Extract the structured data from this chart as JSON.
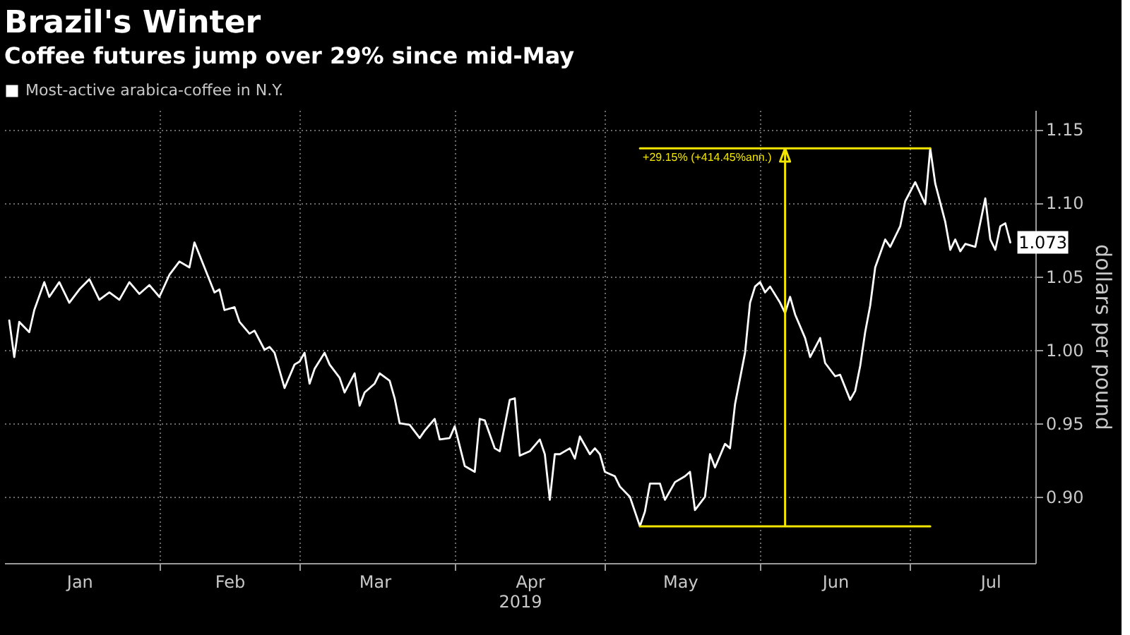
{
  "chart_data": {
    "type": "line",
    "title": "Brazil's Winter",
    "subtitle": "Coffee futures jump over 29% since mid-May",
    "xlabel": "2019",
    "ylabel": "dollars per pound",
    "x": [
      "2019-01-02",
      "2019-01-03",
      "2019-01-04",
      "2019-01-06",
      "2019-01-07",
      "2019-01-09",
      "2019-01-10",
      "2019-01-12",
      "2019-01-14",
      "2019-01-16",
      "2019-01-18",
      "2019-01-20",
      "2019-01-22",
      "2019-01-24",
      "2019-01-26",
      "2019-01-28",
      "2019-01-30",
      "2019-02-01",
      "2019-02-03",
      "2019-02-05",
      "2019-02-07",
      "2019-02-08",
      "2019-02-10",
      "2019-02-12",
      "2019-02-13",
      "2019-02-14",
      "2019-02-16",
      "2019-02-17",
      "2019-02-19",
      "2019-02-20",
      "2019-02-22",
      "2019-02-23",
      "2019-02-24",
      "2019-02-26",
      "2019-02-28",
      "2019-03-01",
      "2019-03-02",
      "2019-03-03",
      "2019-03-04",
      "2019-03-06",
      "2019-03-07",
      "2019-03-09",
      "2019-03-10",
      "2019-03-12",
      "2019-03-13",
      "2019-03-14",
      "2019-03-16",
      "2019-03-17",
      "2019-03-19",
      "2019-03-20",
      "2019-03-21",
      "2019-03-23",
      "2019-03-25",
      "2019-03-26",
      "2019-03-28",
      "2019-03-29",
      "2019-03-31",
      "2019-04-01",
      "2019-04-03",
      "2019-04-05",
      "2019-04-06",
      "2019-04-07",
      "2019-04-09",
      "2019-04-10",
      "2019-04-12",
      "2019-04-13",
      "2019-04-14",
      "2019-04-16",
      "2019-04-18",
      "2019-04-19",
      "2019-04-20",
      "2019-04-21",
      "2019-04-22",
      "2019-04-24",
      "2019-04-25",
      "2019-04-26",
      "2019-04-28",
      "2019-04-29",
      "2019-04-30",
      "2019-05-01",
      "2019-05-03",
      "2019-05-04",
      "2019-05-06",
      "2019-05-08",
      "2019-05-09",
      "2019-05-10",
      "2019-05-12",
      "2019-05-13",
      "2019-05-15",
      "2019-05-17",
      "2019-05-18",
      "2019-05-19",
      "2019-05-21",
      "2019-05-22",
      "2019-05-23",
      "2019-05-25",
      "2019-05-26",
      "2019-05-27",
      "2019-05-29",
      "2019-05-30",
      "2019-05-31",
      "2019-06-01",
      "2019-06-02",
      "2019-06-03",
      "2019-06-05",
      "2019-06-06",
      "2019-06-07",
      "2019-06-08",
      "2019-06-10",
      "2019-06-11",
      "2019-06-13",
      "2019-06-14",
      "2019-06-16",
      "2019-06-17",
      "2019-06-19",
      "2019-06-20",
      "2019-06-21",
      "2019-06-22",
      "2019-06-23",
      "2019-06-24",
      "2019-06-26",
      "2019-06-27",
      "2019-06-29",
      "2019-06-30",
      "2019-07-02",
      "2019-07-04",
      "2019-07-05",
      "2019-07-06",
      "2019-07-08",
      "2019-07-09",
      "2019-07-10",
      "2019-07-11",
      "2019-07-12",
      "2019-07-14",
      "2019-07-16",
      "2019-07-17",
      "2019-07-18",
      "2019-07-19",
      "2019-07-20",
      "2019-07-21"
    ],
    "series": [
      {
        "name": "Most-active arabica-coffee in N.Y.",
        "color": "#ffffff",
        "values": [
          1.02,
          0.995,
          1.019,
          1.012,
          1.027,
          1.046,
          1.036,
          1.046,
          1.032,
          1.041,
          1.048,
          1.034,
          1.039,
          1.034,
          1.046,
          1.038,
          1.044,
          1.036,
          1.051,
          1.06,
          1.056,
          1.073,
          1.056,
          1.039,
          1.041,
          1.027,
          1.029,
          1.019,
          1.011,
          1.013,
          1.0,
          1.002,
          0.998,
          0.974,
          0.99,
          0.992,
          0.998,
          0.977,
          0.987,
          0.998,
          0.99,
          0.981,
          0.971,
          0.984,
          0.962,
          0.971,
          0.977,
          0.984,
          0.979,
          0.967,
          0.95,
          0.949,
          0.94,
          0.945,
          0.953,
          0.939,
          0.94,
          0.948,
          0.921,
          0.917,
          0.953,
          0.952,
          0.933,
          0.931,
          0.966,
          0.967,
          0.928,
          0.931,
          0.939,
          0.929,
          0.898,
          0.929,
          0.929,
          0.933,
          0.926,
          0.941,
          0.929,
          0.933,
          0.929,
          0.917,
          0.914,
          0.907,
          0.9,
          0.88,
          0.89,
          0.909,
          0.909,
          0.898,
          0.91,
          0.914,
          0.917,
          0.891,
          0.9,
          0.929,
          0.92,
          0.936,
          0.933,
          0.963,
          0.998,
          1.032,
          1.043,
          1.046,
          1.039,
          1.043,
          1.032,
          1.025,
          1.036,
          1.024,
          1.008,
          0.995,
          1.008,
          0.991,
          0.982,
          0.983,
          0.966,
          0.972,
          0.989,
          1.012,
          1.03,
          1.056,
          1.075,
          1.07,
          1.084,
          1.101,
          1.114,
          1.099,
          1.137,
          1.113,
          1.087,
          1.068,
          1.075,
          1.067,
          1.072,
          1.07,
          1.103,
          1.075,
          1.068,
          1.084,
          1.086,
          1.073
        ],
        "value_labels": [
          null,
          null,
          null,
          null,
          null,
          null,
          null,
          null,
          null,
          null,
          null,
          null,
          null,
          null,
          null,
          null,
          null,
          null,
          null,
          null,
          null,
          null,
          null,
          null,
          null,
          null,
          null,
          null,
          null,
          null,
          null,
          null,
          null,
          null,
          null,
          null,
          null,
          null,
          null,
          null,
          null,
          null,
          null,
          null,
          null,
          null,
          null,
          null,
          null,
          null,
          null,
          null,
          null,
          null,
          null,
          null,
          null,
          null,
          null,
          null,
          null,
          null,
          null,
          null,
          null,
          null,
          null,
          null,
          null,
          null,
          null,
          null,
          null,
          null,
          null,
          null,
          null,
          null,
          null,
          null,
          null,
          null,
          null,
          null,
          null,
          null,
          null,
          null,
          null,
          null,
          null,
          null,
          null,
          null,
          null,
          null,
          null,
          null,
          null,
          null,
          null,
          null,
          null,
          null,
          null,
          null,
          null,
          null,
          null,
          null,
          null,
          null,
          null,
          null,
          null,
          null,
          null,
          null,
          null,
          null,
          null,
          null,
          null,
          null,
          null,
          null,
          null,
          null,
          null,
          null,
          null,
          null,
          null,
          null,
          null,
          null,
          null,
          null,
          null,
          "1.073"
        ]
      },
      {
        "type": "line",
        "color": "#f2e600",
        "x": [
          "2019-05-08",
          "2019-07-05",
          "2019-06-06",
          "2019-06-06",
          "2019-06-05",
          "2019-06-07",
          "2019-06-06",
          "2019-05-08",
          "2019-07-05"
        ],
        "values": [
          0.88,
          0.88,
          0.88,
          1.137,
          1.128,
          1.128,
          1.137,
          1.137,
          1.137
        ]
      }
    ],
    "xlim": [
      "2019-01-01",
      "2019-07-26"
    ],
    "xticks": [
      {
        "value": "2019-01-16",
        "label": "Jan"
      },
      {
        "value": "2019-02-01",
        "label": null
      },
      {
        "value": "2019-02-15",
        "label": "Feb"
      },
      {
        "value": "2019-03-01",
        "label": null
      },
      {
        "value": "2019-03-16",
        "label": "Mar"
      },
      {
        "value": "2019-04-01",
        "label": null
      },
      {
        "value": "2019-04-16",
        "label": "Apr"
      },
      {
        "value": "2019-05-01",
        "label": null
      },
      {
        "value": "2019-05-16",
        "label": "May"
      },
      {
        "value": "2019-06-01",
        "label": null
      },
      {
        "value": "2019-06-16",
        "label": "Jun"
      },
      {
        "value": "2019-07-01",
        "label": null
      },
      {
        "value": "2019-07-17",
        "label": "Jul"
      }
    ],
    "ylim": [
      0.855,
      1.163
    ],
    "yticks": [
      {
        "value": 0.9,
        "label": "0.90"
      },
      0.95,
      {
        "value": 1,
        "label": "1.00"
      },
      1.05,
      {
        "value": 1.1,
        "label": "1.10"
      },
      1.15
    ],
    "annotations": [
      "+29.15% (+414.45%ann.)"
    ],
    "grid": true,
    "legend": "top left"
  }
}
